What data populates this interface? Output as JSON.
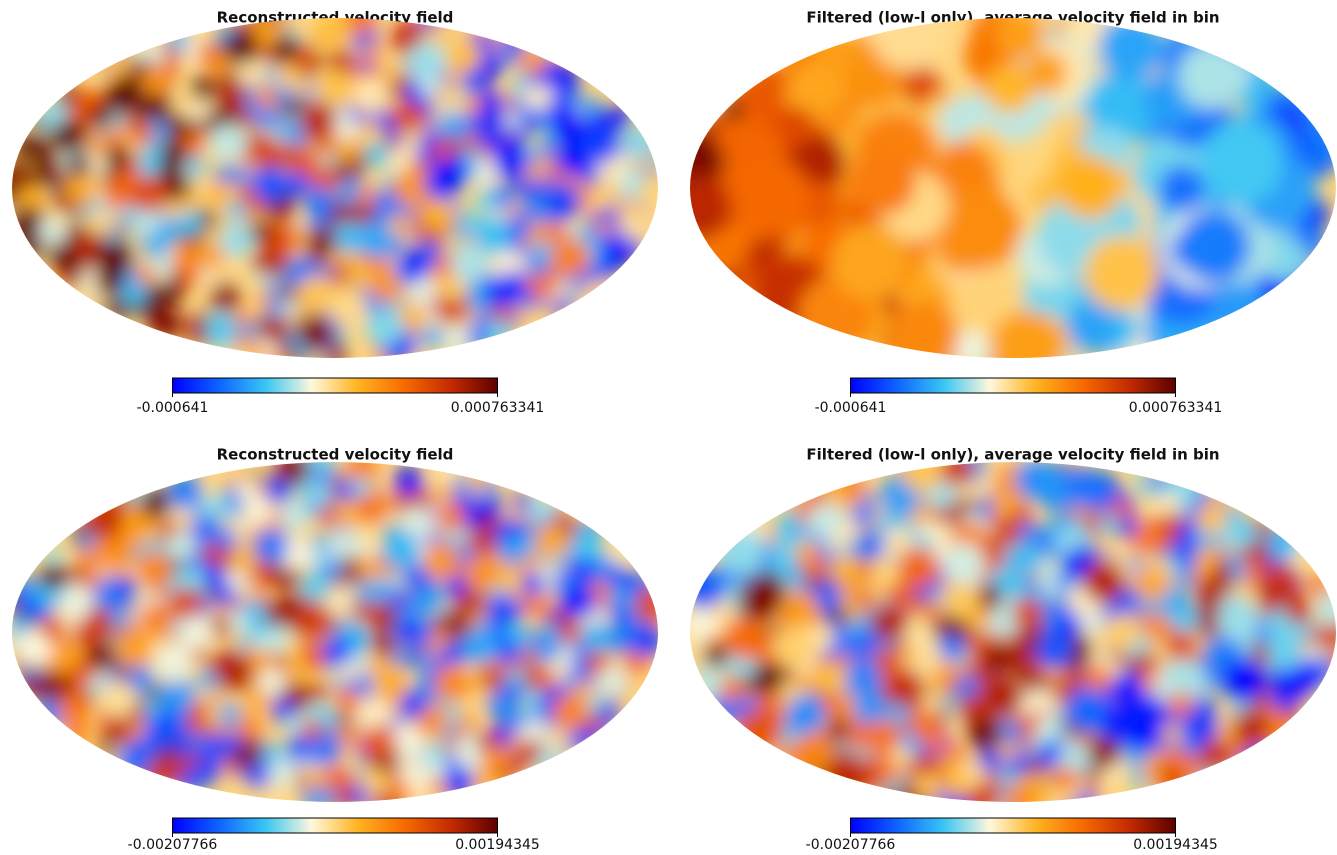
{
  "chart_data": [
    {
      "type": "mollweide-map",
      "title": "Reconstructed velocity field",
      "clim": [
        -0.000641,
        0.000763341
      ],
      "cticks": [
        -0.000641,
        0.000763341
      ],
      "colormap": [
        "#0000ff",
        "#0e63ff",
        "#38c5f4",
        "#fff8dc",
        "#ffb320",
        "#f76a00",
        "#c42a00",
        "#5c0000"
      ]
    },
    {
      "type": "mollweide-map",
      "title": "Filtered (low-l only), average velocity field in bin",
      "clim": [
        -0.000641,
        0.000763341
      ],
      "cticks": [
        -0.000641,
        0.000763341
      ],
      "colormap": [
        "#0000ff",
        "#0e63ff",
        "#38c5f4",
        "#fff8dc",
        "#ffb320",
        "#f76a00",
        "#c42a00",
        "#5c0000"
      ]
    },
    {
      "type": "mollweide-map",
      "title": "Reconstructed velocity field",
      "clim": [
        -0.00207766,
        0.00194345
      ],
      "cticks": [
        -0.00207766,
        0.00194345
      ],
      "colormap": [
        "#0000ff",
        "#0e63ff",
        "#38c5f4",
        "#fff8dc",
        "#ffb320",
        "#f76a00",
        "#c42a00",
        "#5c0000"
      ]
    },
    {
      "type": "mollweide-map",
      "title": "Filtered (low-l only), average velocity field in bin",
      "clim": [
        -0.00207766,
        0.00194345
      ],
      "cticks": [
        -0.00207766,
        0.00194345
      ],
      "colormap": [
        "#0000ff",
        "#0e63ff",
        "#38c5f4",
        "#fff8dc",
        "#ffb320",
        "#f76a00",
        "#c42a00",
        "#5c0000"
      ]
    }
  ]
}
